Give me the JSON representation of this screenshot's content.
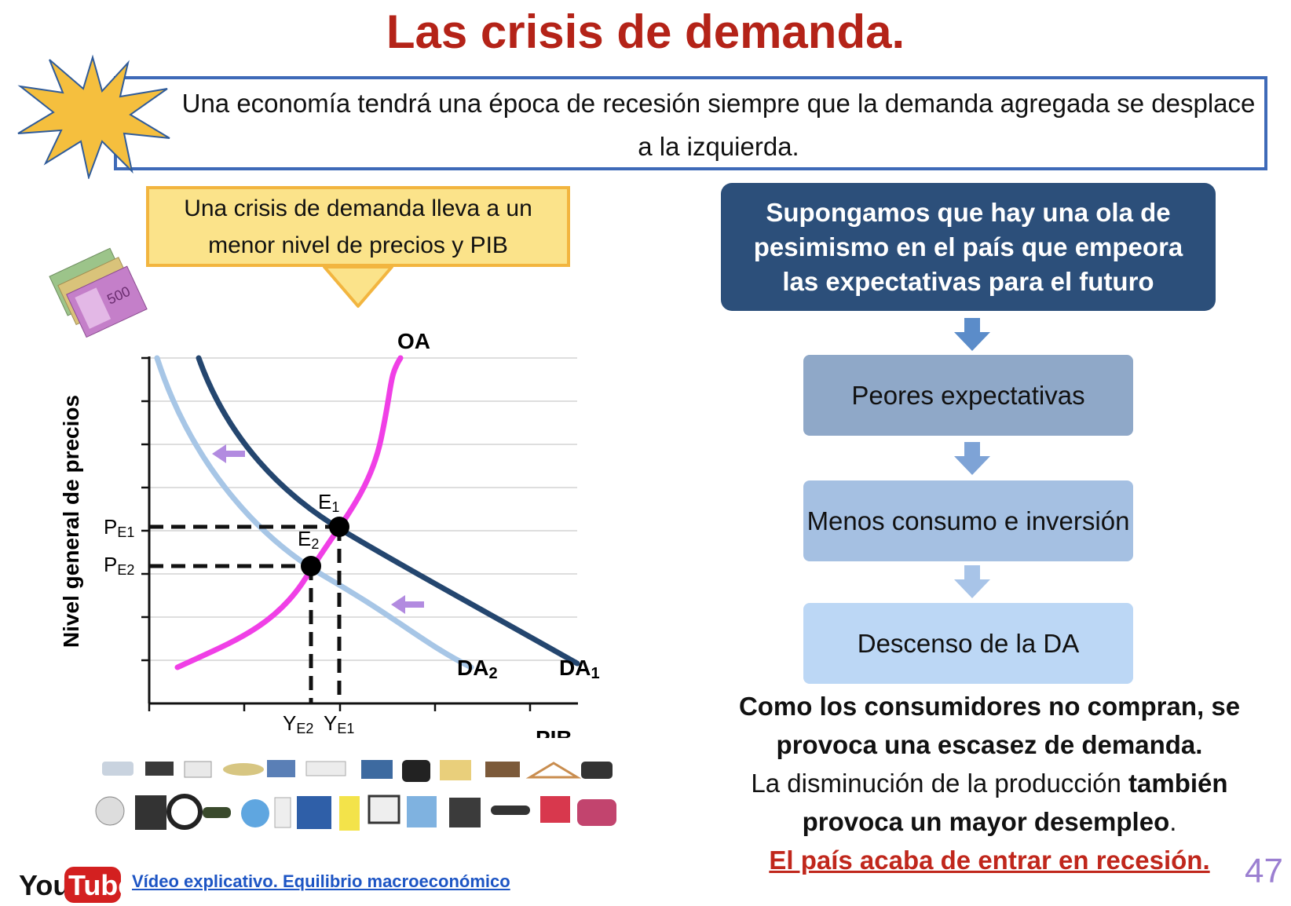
{
  "title": "Las crisis de demanda.",
  "intro": "Una economía tendrá una época de recesión siempre que la demanda agregada se desplace a la izquierda.",
  "callout": "Una crisis de demanda lleva a un menor nivel de precios y PIB",
  "chart": {
    "y_axis_label": "Nivel general de precios",
    "x_axis_label": "PIB",
    "curve_oa": "OA",
    "curve_da2": "DA",
    "curve_da2_sub": "2",
    "curve_da1": "DA",
    "curve_da1_sub": "1",
    "e1": "E",
    "e1_sub": "1",
    "e2": "E",
    "e2_sub": "2",
    "p1": "P",
    "p1_sub": "E1",
    "p2": "P",
    "p2_sub": "E2",
    "y2": "Y",
    "y2_sub": "E2",
    "y1": "Y",
    "y1_sub": "E1",
    "colors": {
      "oa": "#f03fe6",
      "da1": "#24466f",
      "da2": "#a7c6e6",
      "shift_arrow": "#b28be0"
    }
  },
  "flow": {
    "top": "Supongamos que hay una ola de pesimismo en el país que empeora las expectativas para el futuro",
    "step1": "Peores expectativas",
    "step2": "Menos consumo e inversión",
    "step3": "Descenso de la DA"
  },
  "conclusion": {
    "line1": "Como los consumidores no compran, se provoca una escasez de demanda.",
    "line2a": "La disminución de la producción ",
    "line2b": "también provoca un mayor desempleo",
    "line2c": ".",
    "line3": "El país acaba de entrar en recesión."
  },
  "page_number": "47",
  "video": {
    "logo_you": "You",
    "logo_tube": "Tube",
    "link": "Vídeo explicativo. Equilibrio macroeconómico"
  },
  "money_note": "500"
}
